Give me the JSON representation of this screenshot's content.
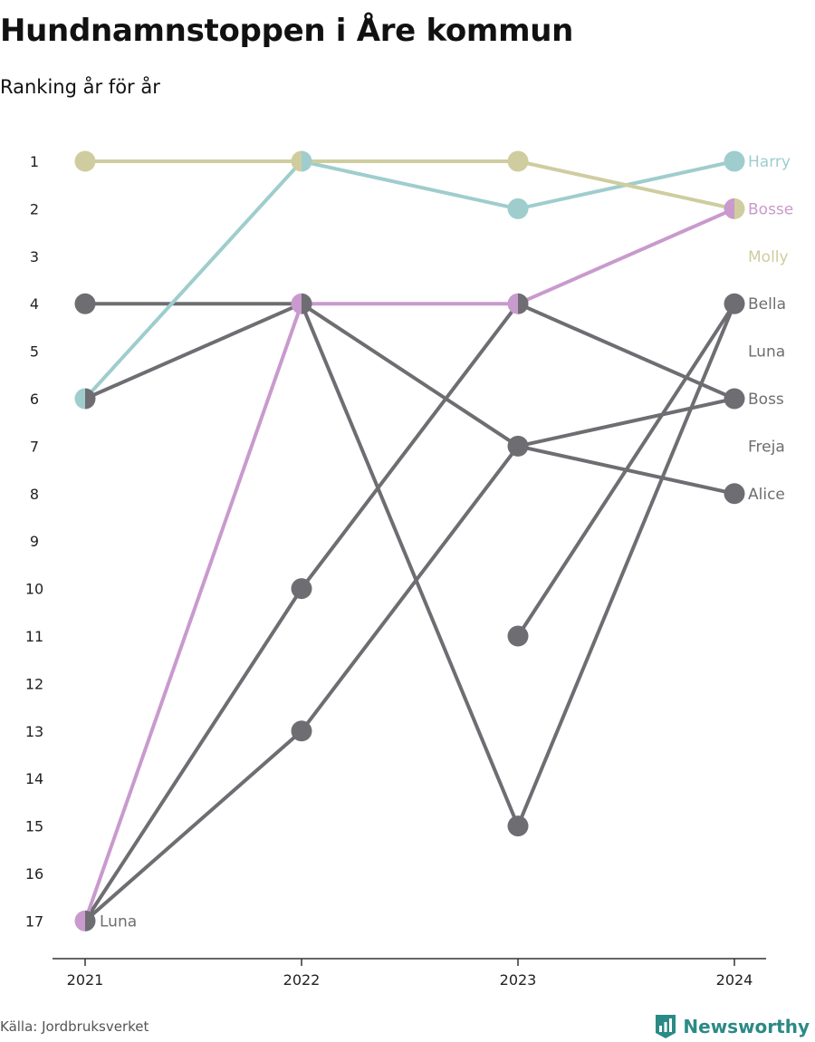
{
  "header": {
    "title": "Hundnamnstoppen i Åre kommun",
    "subtitle": "Ranking år för år"
  },
  "footer": {
    "source": "Källa: Jordbruksverket",
    "brand": "Newsworthy"
  },
  "colors": {
    "gray": "#6e6d72",
    "teal": "#9fcdcd",
    "olive": "#cfcd9f",
    "pink": "#c99acd",
    "axis": "#333333",
    "brand": "#2b8a86"
  },
  "chart_data": {
    "type": "line",
    "title": "Hundnamnstoppen i Åre kommun",
    "subtitle": "Ranking år för år",
    "x": [
      "2021",
      "2022",
      "2023",
      "2024"
    ],
    "y_ticks": [
      1,
      2,
      3,
      4,
      5,
      6,
      7,
      8,
      9,
      10,
      11,
      12,
      13,
      14,
      15,
      16,
      17
    ],
    "ylim": [
      1,
      17
    ],
    "y_reversed": true,
    "grid": false,
    "series": [
      {
        "values": [
          6,
          4,
          null,
          null
        ],
        "color": "gray"
      },
      {
        "values": [
          4,
          4,
          7,
          8
        ],
        "color": "gray"
      },
      {
        "values": [
          null,
          4,
          15,
          4
        ],
        "color": "gray"
      },
      {
        "values": [
          17,
          10,
          4,
          6
        ],
        "color": "gray"
      },
      {
        "values": [
          17,
          13,
          7,
          6
        ],
        "color": "gray"
      },
      {
        "values": [
          null,
          null,
          11,
          4
        ],
        "color": "gray"
      },
      {
        "name": "Harry",
        "values": [
          6,
          1,
          2,
          1
        ],
        "color": "teal"
      },
      {
        "name": "Molly",
        "values": [
          1,
          1,
          1,
          2
        ],
        "color": "olive"
      },
      {
        "name": "Bosse",
        "values": [
          17,
          4,
          4,
          2
        ],
        "color": "pink"
      }
    ],
    "end_labels": [
      {
        "text": "Harry",
        "rank": 1,
        "color": "teal"
      },
      {
        "text": "Bosse",
        "rank": 2,
        "color": "pink"
      },
      {
        "text": "Molly",
        "rank": 3,
        "color": "olive"
      },
      {
        "text": "Bella",
        "rank": 4,
        "color": "gray"
      },
      {
        "text": "Luna",
        "rank": 5,
        "color": "gray"
      },
      {
        "text": "Boss",
        "rank": 6,
        "color": "gray"
      },
      {
        "text": "Freja",
        "rank": 7,
        "color": "gray"
      },
      {
        "text": "Alice",
        "rank": 8,
        "color": "gray"
      }
    ],
    "start_label": {
      "text": "Luna",
      "rank": 17,
      "year": "2021"
    }
  }
}
